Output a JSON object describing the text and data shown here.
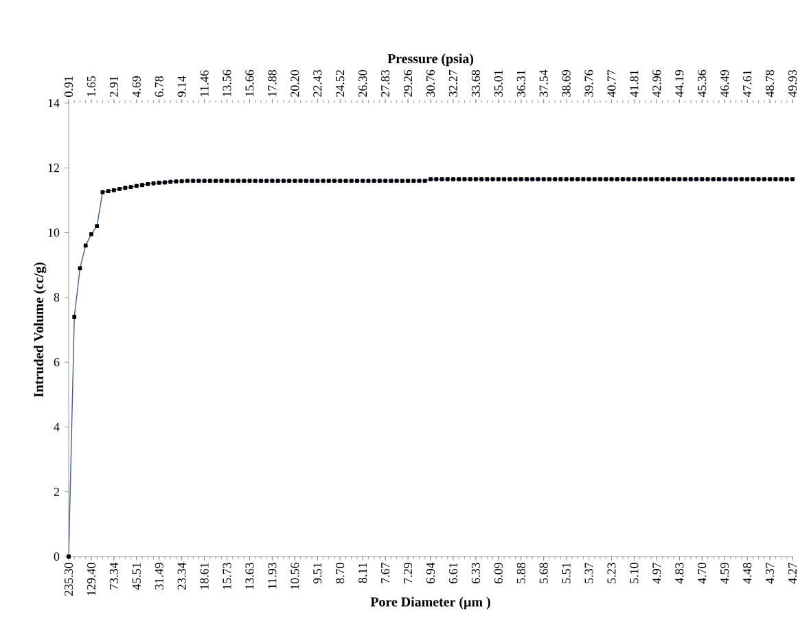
{
  "chart_data": {
    "type": "line",
    "x2label": "Pressure (psia)",
    "xlabel": "Pore Diameter (µm )",
    "ylabel": "Intruded Volume (cc/g)",
    "categories": [
      "235.30",
      null,
      null,
      null,
      "129.40",
      null,
      null,
      null,
      "73.34",
      null,
      null,
      null,
      "45.51",
      null,
      null,
      null,
      "31.49",
      null,
      null,
      null,
      "23.34",
      null,
      null,
      null,
      "18.61",
      null,
      null,
      null,
      "15.73",
      null,
      null,
      null,
      "13.63",
      null,
      null,
      null,
      "11.93",
      null,
      null,
      null,
      "10.56",
      null,
      null,
      null,
      "9.51",
      null,
      null,
      null,
      "8.70",
      null,
      null,
      null,
      "8.11",
      null,
      null,
      null,
      "7.67",
      null,
      null,
      null,
      "7.29",
      null,
      null,
      null,
      "6.94",
      null,
      null,
      null,
      "6.61",
      null,
      null,
      null,
      "6.33",
      null,
      null,
      null,
      "6.09",
      null,
      null,
      null,
      "5.88",
      null,
      null,
      null,
      "5.68",
      null,
      null,
      null,
      "5.51",
      null,
      null,
      null,
      "5.37",
      null,
      null,
      null,
      "5.23",
      null,
      null,
      null,
      "5.10",
      null,
      null,
      null,
      "4.97",
      null,
      null,
      null,
      "4.83",
      null,
      null,
      null,
      "4.70",
      null,
      null,
      null,
      "4.59",
      null,
      null,
      null,
      "4.48",
      null,
      null,
      null,
      "4.37",
      null,
      null,
      null,
      "4.27"
    ],
    "annotations": [
      "0.91",
      "1.65",
      "2.91",
      "4.69",
      "6.78",
      "9.14",
      "11.46",
      "13.56",
      "15.66",
      "17.88",
      "20.20",
      "22.43",
      "24.52",
      "26.30",
      "27.83",
      "29.26",
      "30.76",
      "32.27",
      "33.68",
      "35.01",
      "36.31",
      "37.54",
      "38.69",
      "39.76",
      "40.77",
      "41.81",
      "42.96",
      "44.19",
      "45.36",
      "46.49",
      "47.61",
      "48.78",
      "49.93"
    ],
    "ylim": [
      0,
      14
    ],
    "yticks": [
      0,
      2,
      4,
      6,
      8,
      10,
      12,
      14
    ],
    "marker": "square",
    "line_style": "solid",
    "series": [
      {
        "color": "#3a5f9a",
        "values": [
          0,
          7.4,
          8.9,
          9.6,
          9.95,
          10.2,
          11.25,
          11.28,
          11.31,
          11.35,
          11.38,
          11.41,
          11.44,
          11.47,
          11.5,
          11.52,
          11.54,
          11.55,
          11.57,
          11.58,
          11.59,
          11.6,
          11.6,
          11.6,
          11.6,
          11.6,
          11.6,
          11.6,
          11.6,
          11.6,
          11.6,
          11.6,
          11.6,
          11.6,
          11.6,
          11.6,
          11.6,
          11.6,
          11.6,
          11.6,
          11.6,
          11.6,
          11.6,
          11.6,
          11.6,
          11.6,
          11.6,
          11.6,
          11.6,
          11.6,
          11.6,
          11.6,
          11.6,
          11.6,
          11.6,
          11.6,
          11.6,
          11.6,
          11.6,
          11.6,
          11.6,
          11.6,
          11.6,
          11.6,
          11.65,
          11.65,
          11.65,
          11.65,
          11.65,
          11.65,
          11.65,
          11.65,
          11.65,
          11.65,
          11.65,
          11.65,
          11.65,
          11.65,
          11.65,
          11.65,
          11.65,
          11.65,
          11.65,
          11.65,
          11.65,
          11.65,
          11.65,
          11.65,
          11.65,
          11.65,
          11.65,
          11.65,
          11.65,
          11.65,
          11.65,
          11.65,
          11.65,
          11.65,
          11.65,
          11.65,
          11.65,
          11.65,
          11.65,
          11.65,
          11.65,
          11.65,
          11.65,
          11.65,
          11.65,
          11.65,
          11.65,
          11.65,
          11.65,
          11.65,
          11.65,
          11.65,
          11.65,
          11.65,
          11.65,
          11.65,
          11.65,
          11.65,
          11.65,
          11.65,
          11.65,
          11.65,
          11.65,
          11.65,
          11.65
        ]
      }
    ]
  }
}
